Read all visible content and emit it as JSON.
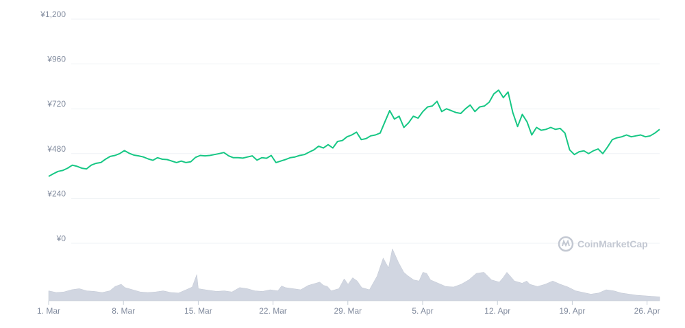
{
  "chart_data": {
    "type": "line",
    "title": "",
    "xlabel": "",
    "ylabel": "",
    "ylim": [
      0,
      1200
    ],
    "grid": true,
    "y_ticks": [
      "¥1,200",
      "¥960",
      "¥720",
      "¥480",
      "¥240",
      "¥0"
    ],
    "y_tick_values": [
      1200,
      960,
      720,
      480,
      240,
      0
    ],
    "x_ticks": [
      "1. Mar",
      "8. Mar",
      "15. Mar",
      "22. Mar",
      "29. Mar",
      "5. Apr",
      "12. Apr",
      "19. Apr",
      "26. Apr"
    ],
    "x_tick_days": [
      0,
      7,
      14,
      21,
      28,
      35,
      42,
      49,
      56
    ],
    "x_end_day": 57.5,
    "series": [
      {
        "color": "#16c784",
        "points": [
          [
            0,
            358
          ],
          [
            0.5,
            372
          ],
          [
            1,
            385
          ],
          [
            1.5,
            390
          ],
          [
            2,
            402
          ],
          [
            2.5,
            418
          ],
          [
            3,
            412
          ],
          [
            3.5,
            402
          ],
          [
            4,
            398
          ],
          [
            4.5,
            418
          ],
          [
            5,
            428
          ],
          [
            5.5,
            432
          ],
          [
            6,
            450
          ],
          [
            6.5,
            465
          ],
          [
            7,
            470
          ],
          [
            7.5,
            480
          ],
          [
            8,
            496
          ],
          [
            8.5,
            482
          ],
          [
            9,
            472
          ],
          [
            9.5,
            468
          ],
          [
            10,
            462
          ],
          [
            10.5,
            452
          ],
          [
            11,
            444
          ],
          [
            11.5,
            458
          ],
          [
            12,
            450
          ],
          [
            12.5,
            448
          ],
          [
            13,
            440
          ],
          [
            13.5,
            432
          ],
          [
            14,
            440
          ],
          [
            14.5,
            432
          ],
          [
            15,
            436
          ],
          [
            15.5,
            460
          ],
          [
            16,
            470
          ],
          [
            16.5,
            468
          ],
          [
            17,
            470
          ],
          [
            17.5,
            475
          ],
          [
            18,
            480
          ],
          [
            18.5,
            486
          ],
          [
            19,
            468
          ],
          [
            19.5,
            458
          ],
          [
            20,
            458
          ],
          [
            20.5,
            456
          ],
          [
            21,
            462
          ],
          [
            21.5,
            468
          ],
          [
            22,
            445
          ],
          [
            22.5,
            458
          ],
          [
            23,
            455
          ],
          [
            23.5,
            470
          ],
          [
            24,
            432
          ],
          [
            24.5,
            440
          ],
          [
            25,
            448
          ],
          [
            25.5,
            458
          ],
          [
            26,
            462
          ],
          [
            26.5,
            470
          ],
          [
            27,
            475
          ],
          [
            27.5,
            488
          ],
          [
            28,
            500
          ],
          [
            28.5,
            520
          ],
          [
            29,
            510
          ],
          [
            29.5,
            528
          ],
          [
            30,
            510
          ],
          [
            30.5,
            545
          ],
          [
            31,
            550
          ],
          [
            31.5,
            570
          ],
          [
            32,
            580
          ],
          [
            32.5,
            595
          ],
          [
            33,
            555
          ],
          [
            33.5,
            560
          ],
          [
            34,
            575
          ],
          [
            34.5,
            580
          ],
          [
            35,
            590
          ],
          [
            35.5,
            650
          ],
          [
            36,
            710
          ],
          [
            36.5,
            665
          ],
          [
            37,
            680
          ],
          [
            37.5,
            620
          ],
          [
            38,
            645
          ],
          [
            38.5,
            680
          ],
          [
            39,
            670
          ],
          [
            39.5,
            705
          ],
          [
            40,
            730
          ],
          [
            40.5,
            735
          ],
          [
            41,
            760
          ],
          [
            41.5,
            705
          ],
          [
            42,
            720
          ],
          [
            42.5,
            710
          ],
          [
            43,
            700
          ],
          [
            43.5,
            695
          ],
          [
            44,
            720
          ],
          [
            44.5,
            740
          ],
          [
            45,
            705
          ],
          [
            45.5,
            730
          ],
          [
            46,
            735
          ],
          [
            46.5,
            755
          ],
          [
            47,
            800
          ],
          [
            47.5,
            820
          ],
          [
            48,
            780
          ],
          [
            48.5,
            810
          ],
          [
            49,
            700
          ],
          [
            49.5,
            625
          ],
          [
            50,
            690
          ],
          [
            50.5,
            650
          ],
          [
            51,
            580
          ],
          [
            51.5,
            620
          ],
          [
            52,
            605
          ],
          [
            52.5,
            610
          ],
          [
            53,
            620
          ],
          [
            53.5,
            610
          ],
          [
            54,
            615
          ],
          [
            54.5,
            590
          ],
          [
            55,
            500
          ],
          [
            55.5,
            475
          ],
          [
            56,
            490
          ],
          [
            56.5,
            495
          ],
          [
            57,
            480
          ],
          [
            57.5,
            495
          ],
          [
            58,
            505
          ],
          [
            58.5,
            480
          ],
          [
            59,
            515
          ],
          [
            59.5,
            555
          ],
          [
            60,
            565
          ],
          [
            60.5,
            570
          ],
          [
            61,
            580
          ],
          [
            61.5,
            570
          ],
          [
            62,
            575
          ],
          [
            62.5,
            580
          ],
          [
            63,
            570
          ],
          [
            63.5,
            575
          ],
          [
            64,
            590
          ],
          [
            64.5,
            610
          ]
        ]
      }
    ],
    "volume": {
      "color": "#d1d6e1",
      "scale_max": 100,
      "points": [
        [
          0,
          18
        ],
        [
          1,
          15
        ],
        [
          2,
          16
        ],
        [
          3,
          20
        ],
        [
          4,
          22
        ],
        [
          5,
          18
        ],
        [
          6,
          17
        ],
        [
          7,
          15
        ],
        [
          8,
          18
        ],
        [
          8.7,
          26
        ],
        [
          9.5,
          30
        ],
        [
          10,
          24
        ],
        [
          11,
          20
        ],
        [
          12,
          16
        ],
        [
          13,
          15
        ],
        [
          14,
          16
        ],
        [
          15,
          18
        ],
        [
          16,
          15
        ],
        [
          17,
          14
        ],
        [
          18,
          20
        ],
        [
          18.8,
          25
        ],
        [
          19.4,
          48
        ],
        [
          19.6,
          22
        ],
        [
          20.5,
          20
        ],
        [
          21,
          19
        ],
        [
          22,
          17
        ],
        [
          23,
          18
        ],
        [
          24,
          16
        ],
        [
          25,
          24
        ],
        [
          26,
          22
        ],
        [
          27,
          18
        ],
        [
          28,
          17
        ],
        [
          29,
          20
        ],
        [
          30,
          18
        ],
        [
          30.5,
          27
        ],
        [
          31,
          24
        ],
        [
          32,
          22
        ],
        [
          33,
          20
        ],
        [
          34,
          28
        ],
        [
          35,
          32
        ],
        [
          35.5,
          34
        ],
        [
          36,
          28
        ],
        [
          36.5,
          26
        ],
        [
          37,
          18
        ],
        [
          37.5,
          20
        ],
        [
          38,
          22
        ],
        [
          38.7,
          40
        ],
        [
          39.2,
          30
        ],
        [
          39.8,
          42
        ],
        [
          40.4,
          36
        ],
        [
          41,
          24
        ],
        [
          42,
          20
        ],
        [
          43,
          45
        ],
        [
          43.8,
          78
        ],
        [
          44.5,
          60
        ],
        [
          45,
          95
        ],
        [
          45.8,
          70
        ],
        [
          46.5,
          52
        ],
        [
          47,
          46
        ],
        [
          47.8,
          38
        ],
        [
          48.5,
          36
        ],
        [
          49,
          52
        ],
        [
          49.5,
          50
        ],
        [
          50,
          38
        ],
        [
          51,
          32
        ],
        [
          52,
          26
        ],
        [
          53,
          25
        ],
        [
          54,
          30
        ],
        [
          55,
          38
        ],
        [
          56,
          50
        ],
        [
          57,
          52
        ],
        [
          58,
          38
        ],
        [
          59,
          34
        ],
        [
          59.5,
          42
        ],
        [
          60,
          52
        ],
        [
          60.5,
          44
        ],
        [
          61,
          36
        ],
        [
          62,
          32
        ],
        [
          62.6,
          36
        ],
        [
          63,
          30
        ],
        [
          64,
          26
        ],
        [
          65,
          30
        ],
        [
          66,
          36
        ],
        [
          67,
          30
        ],
        [
          68,
          25
        ],
        [
          69,
          18
        ],
        [
          70,
          15
        ],
        [
          71,
          12
        ],
        [
          72,
          14
        ],
        [
          73,
          20
        ],
        [
          74,
          18
        ],
        [
          75,
          14
        ],
        [
          76,
          12
        ],
        [
          77,
          10
        ],
        [
          78,
          9
        ],
        [
          79,
          8
        ],
        [
          80,
          7
        ]
      ]
    },
    "watermark": "CoinMarketCap"
  }
}
